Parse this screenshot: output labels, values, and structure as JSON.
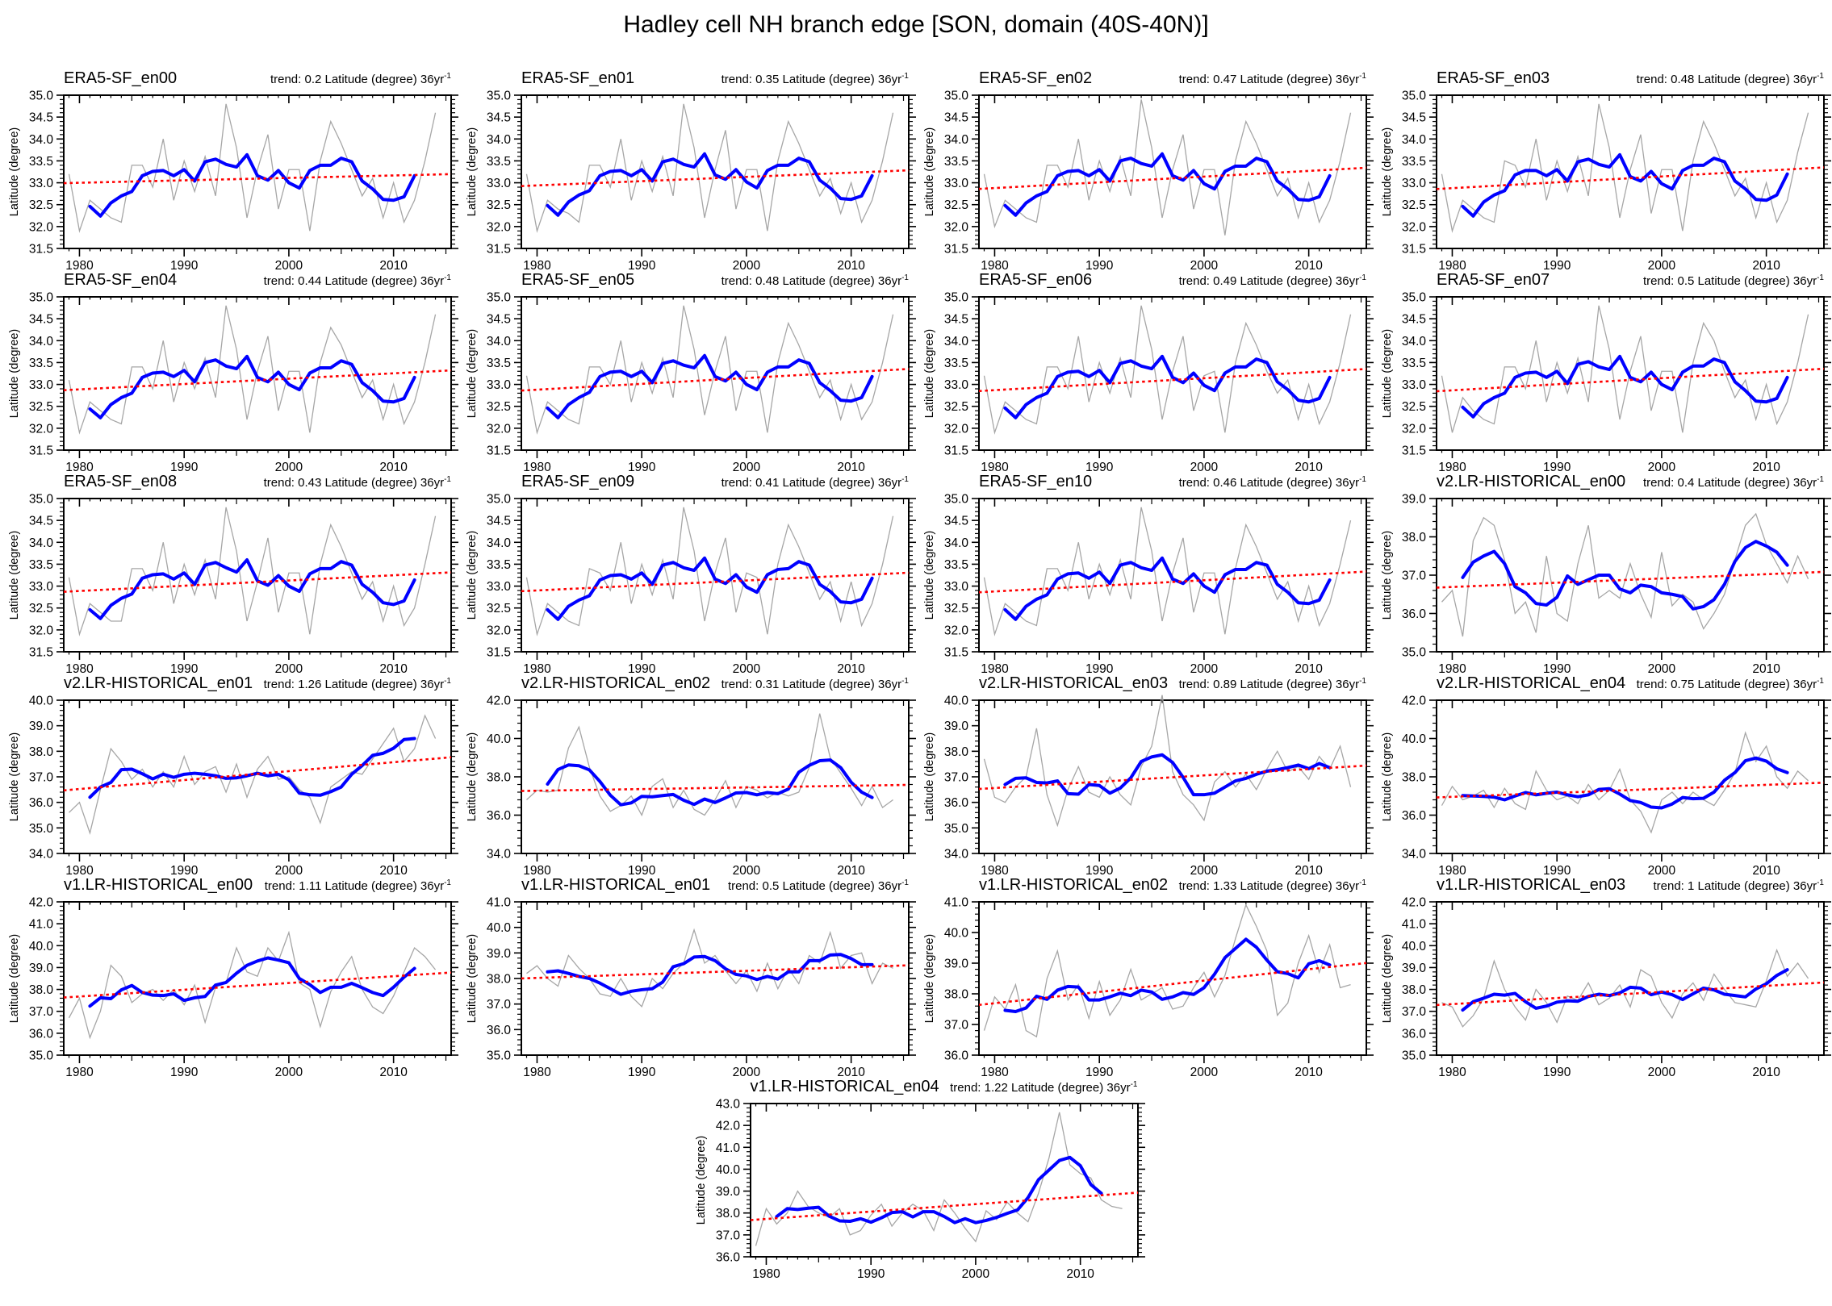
{
  "figure": {
    "title": "Hadley cell NH branch edge [SON, domain (40S-40N)]"
  },
  "chart_data": {
    "type": "line",
    "title": "Hadley cell NH branch edge [SON, domain (40S-40N)]",
    "xlabel": "",
    "ylabel": "Latitude (degree)",
    "x_start_year": 1979,
    "x_end_year": 2014,
    "xticks": [
      1980,
      1990,
      2000,
      2010
    ],
    "grid": false,
    "legend": "none",
    "smoothing_window": 5,
    "trend_sup": "-1",
    "colors": {
      "annual": "#a6a6a6",
      "smoothed": "#0000ff",
      "trend": "#ff0000",
      "axis": "#000000"
    },
    "series_roles": [
      {
        "name": "annual values",
        "style": "thin solid",
        "color": "#a6a6a6"
      },
      {
        "name": "5-yr running mean",
        "style": "thick solid",
        "color": "#0000ff"
      },
      {
        "name": "linear trend",
        "style": "dotted",
        "color": "#ff0000"
      }
    ],
    "panels": [
      {
        "title": "ERA5-SF_en00",
        "trend": 0.2,
        "trend_text": "trend: 0.2 Latitude (degree) 36yr",
        "ylim": [
          31.5,
          35.0
        ],
        "ystep": 0.5,
        "values": [
          33.2,
          31.9,
          32.6,
          32.4,
          32.2,
          32.1,
          33.4,
          33.4,
          32.9,
          34.0,
          32.6,
          33.5,
          32.8,
          33.6,
          32.7,
          34.8,
          33.8,
          32.2,
          33.3,
          34.1,
          32.4,
          33.3,
          33.3,
          31.9,
          33.5,
          34.4,
          33.9,
          33.3,
          32.7,
          33.1,
          32.2,
          33.0,
          32.1,
          32.6,
          33.5,
          34.6
        ]
      },
      {
        "title": "ERA5-SF_en01",
        "trend": 0.35,
        "trend_text": "trend: 0.35 Latitude (degree) 36yr",
        "ylim": [
          31.5,
          35.0
        ],
        "ystep": 0.5,
        "values": [
          33.2,
          31.9,
          32.6,
          32.4,
          32.3,
          32.1,
          33.4,
          33.4,
          32.9,
          34.0,
          32.6,
          33.5,
          32.8,
          33.6,
          32.7,
          34.8,
          33.8,
          32.2,
          33.3,
          34.2,
          32.4,
          33.3,
          33.3,
          31.9,
          33.5,
          34.4,
          33.9,
          33.3,
          32.7,
          33.1,
          32.3,
          33.0,
          32.1,
          32.6,
          33.5,
          34.6
        ]
      },
      {
        "title": "ERA5-SF_en02",
        "trend": 0.47,
        "trend_text": "trend: 0.47 Latitude (degree) 36yr",
        "ylim": [
          31.5,
          35.0
        ],
        "ystep": 0.5,
        "values": [
          33.2,
          32.0,
          32.6,
          32.4,
          32.2,
          32.1,
          33.4,
          33.4,
          32.9,
          34.0,
          32.6,
          33.5,
          32.8,
          33.6,
          32.7,
          34.9,
          33.8,
          32.2,
          33.3,
          34.1,
          32.4,
          33.3,
          33.3,
          31.8,
          33.5,
          34.4,
          33.9,
          33.3,
          32.7,
          33.1,
          32.2,
          33.0,
          32.1,
          32.6,
          33.5,
          34.6
        ]
      },
      {
        "title": "ERA5-SF_en03",
        "trend": 0.48,
        "trend_text": "trend: 0.48 Latitude (degree) 36yr",
        "ylim": [
          31.5,
          35.0
        ],
        "ystep": 0.5,
        "values": [
          33.2,
          31.9,
          32.6,
          32.4,
          32.2,
          32.1,
          33.5,
          33.4,
          32.9,
          34.0,
          32.6,
          33.5,
          32.8,
          33.6,
          32.7,
          34.8,
          33.8,
          32.2,
          33.3,
          34.1,
          32.3,
          33.3,
          33.3,
          31.9,
          33.5,
          34.4,
          33.9,
          33.3,
          32.7,
          33.1,
          32.2,
          33.0,
          32.1,
          32.6,
          33.7,
          34.6
        ]
      },
      {
        "title": "ERA5-SF_en04",
        "trend": 0.44,
        "trend_text": "trend: 0.44 Latitude (degree) 36yr",
        "ylim": [
          31.5,
          35.0
        ],
        "ystep": 0.5,
        "values": [
          33.1,
          31.9,
          32.6,
          32.4,
          32.2,
          32.1,
          33.4,
          33.4,
          32.9,
          34.0,
          32.6,
          33.5,
          32.9,
          33.6,
          32.7,
          34.8,
          33.8,
          32.2,
          33.3,
          34.1,
          32.4,
          33.3,
          33.3,
          31.9,
          33.5,
          34.3,
          33.9,
          33.3,
          32.7,
          33.1,
          32.2,
          33.0,
          32.1,
          32.6,
          33.5,
          34.6
        ]
      },
      {
        "title": "ERA5-SF_en05",
        "trend": 0.48,
        "trend_text": "trend: 0.48 Latitude (degree) 36yr",
        "ylim": [
          31.5,
          35.0
        ],
        "ystep": 0.5,
        "values": [
          33.2,
          31.9,
          32.6,
          32.4,
          32.2,
          32.1,
          33.4,
          33.4,
          33.0,
          34.0,
          32.6,
          33.5,
          32.8,
          33.6,
          32.7,
          34.8,
          33.8,
          32.3,
          33.3,
          34.1,
          32.4,
          33.3,
          33.3,
          31.9,
          33.5,
          34.4,
          33.9,
          33.3,
          32.7,
          33.1,
          32.2,
          33.0,
          32.2,
          32.6,
          33.5,
          34.6
        ]
      },
      {
        "title": "ERA5-SF_en06",
        "trend": 0.49,
        "trend_text": "trend: 0.49 Latitude (degree) 36yr",
        "ylim": [
          31.5,
          35.0
        ],
        "ystep": 0.5,
        "values": [
          33.2,
          31.9,
          32.6,
          32.4,
          32.2,
          32.1,
          33.4,
          33.4,
          32.9,
          34.1,
          32.6,
          33.5,
          32.8,
          33.6,
          32.7,
          34.8,
          33.8,
          32.2,
          33.3,
          34.1,
          32.4,
          33.2,
          33.3,
          31.9,
          33.5,
          34.4,
          33.9,
          33.3,
          32.8,
          33.1,
          32.2,
          33.0,
          32.1,
          32.6,
          33.5,
          34.6
        ]
      },
      {
        "title": "ERA5-SF_en07",
        "trend": 0.5,
        "trend_text": "trend: 0.5 Latitude (degree) 36yr",
        "ylim": [
          31.5,
          35.0
        ],
        "ystep": 0.5,
        "values": [
          33.2,
          31.9,
          32.7,
          32.4,
          32.2,
          32.1,
          33.4,
          33.4,
          32.9,
          34.0,
          32.6,
          33.5,
          32.8,
          33.6,
          32.6,
          34.8,
          33.8,
          32.2,
          33.3,
          34.1,
          32.4,
          33.3,
          33.3,
          31.9,
          33.5,
          34.4,
          34.0,
          33.3,
          32.7,
          33.1,
          32.2,
          33.0,
          32.1,
          32.6,
          33.5,
          34.6
        ]
      },
      {
        "title": "ERA5-SF_en08",
        "trend": 0.43,
        "trend_text": "trend: 0.43 Latitude (degree) 36yr",
        "ylim": [
          31.5,
          35.0
        ],
        "ystep": 0.5,
        "values": [
          33.2,
          31.9,
          32.6,
          32.4,
          32.2,
          32.2,
          33.4,
          33.4,
          32.9,
          34.0,
          32.6,
          33.5,
          32.8,
          33.6,
          32.7,
          34.8,
          33.8,
          32.2,
          33.1,
          34.1,
          32.4,
          33.3,
          33.3,
          31.9,
          33.5,
          34.4,
          33.9,
          33.3,
          32.7,
          33.1,
          32.2,
          33.0,
          32.1,
          32.5,
          33.5,
          34.6
        ]
      },
      {
        "title": "ERA5-SF_en09",
        "trend": 0.41,
        "trend_text": "trend: 0.41 Latitude (degree) 36yr",
        "ylim": [
          31.5,
          35.0
        ],
        "ystep": 0.5,
        "values": [
          33.2,
          31.9,
          32.6,
          32.4,
          32.2,
          32.1,
          33.4,
          33.3,
          32.9,
          34.0,
          32.6,
          33.5,
          32.8,
          33.6,
          32.7,
          34.8,
          33.8,
          32.2,
          33.3,
          34.1,
          32.4,
          33.3,
          33.2,
          31.9,
          33.5,
          34.4,
          33.9,
          33.3,
          32.7,
          33.1,
          32.2,
          33.1,
          32.1,
          32.6,
          33.5,
          34.6
        ]
      },
      {
        "title": "ERA5-SF_en10",
        "trend": 0.46,
        "trend_text": "trend: 0.46 Latitude (degree) 36yr",
        "ylim": [
          31.5,
          35.0
        ],
        "ystep": 0.5,
        "values": [
          33.2,
          31.9,
          32.6,
          32.4,
          32.2,
          32.1,
          33.4,
          33.4,
          32.9,
          34.0,
          32.7,
          33.5,
          32.8,
          33.6,
          32.7,
          34.8,
          33.8,
          32.2,
          33.3,
          34.1,
          32.4,
          33.3,
          33.3,
          31.9,
          33.4,
          34.4,
          33.9,
          33.3,
          32.7,
          33.1,
          32.2,
          33.0,
          32.1,
          32.6,
          33.5,
          34.5
        ]
      },
      {
        "title": "v2.LR-HISTORICAL_en00",
        "trend": 0.4,
        "trend_text": "trend: 0.4 Latitude (degree) 36yr",
        "ylim": [
          35.0,
          39.0
        ],
        "ystep": 1.0,
        "values": [
          36.3,
          36.6,
          35.4,
          37.9,
          38.5,
          38.3,
          37.4,
          36.0,
          36.3,
          35.5,
          37.5,
          36.0,
          35.8,
          37.3,
          38.3,
          36.4,
          36.6,
          36.4,
          37.3,
          36.5,
          35.9,
          37.6,
          36.2,
          36.5,
          36.3,
          35.6,
          36.0,
          36.5,
          37.4,
          38.3,
          38.6,
          37.8,
          37.3,
          36.8,
          37.5,
          36.9
        ]
      },
      {
        "title": "v2.LR-HISTORICAL_en01",
        "trend": 1.26,
        "trend_text": "trend: 1.26 Latitude (degree) 36yr",
        "ylim": [
          34.0,
          40.0
        ],
        "ystep": 1.0,
        "values": [
          35.6,
          36.0,
          34.8,
          36.5,
          38.1,
          37.6,
          36.9,
          37.3,
          36.6,
          37.2,
          36.6,
          37.8,
          36.7,
          37.2,
          37.4,
          36.4,
          37.5,
          36.2,
          37.3,
          37.8,
          36.9,
          37.0,
          36.5,
          36.2,
          35.2,
          36.6,
          36.9,
          37.2,
          37.1,
          37.7,
          38.3,
          38.9,
          37.6,
          38.1,
          39.4,
          38.5
        ]
      },
      {
        "title": "v2.LR-HISTORICAL_en02",
        "trend": 0.31,
        "trend_text": "trend: 0.31 Latitude (degree) 36yr",
        "ylim": [
          34.0,
          42.0
        ],
        "ystep": 2.0,
        "values": [
          36.8,
          37.3,
          37.2,
          37.3,
          39.5,
          40.6,
          38.5,
          37.0,
          36.2,
          36.5,
          37.0,
          36.0,
          37.5,
          37.9,
          36.4,
          37.3,
          36.3,
          36.0,
          36.8,
          37.8,
          36.4,
          37.5,
          37.3,
          36.9,
          37.2,
          37.0,
          37.2,
          38.5,
          41.3,
          39.0,
          38.2,
          37.4,
          36.5,
          37.5,
          36.4,
          36.8
        ]
      },
      {
        "title": "v2.LR-HISTORICAL_en03",
        "trend": 0.89,
        "trend_text": "trend: 0.89 Latitude (degree) 36yr",
        "ylim": [
          34.0,
          40.0
        ],
        "ystep": 1.0,
        "values": [
          37.7,
          36.2,
          36.0,
          36.6,
          37.0,
          38.9,
          36.3,
          35.1,
          36.5,
          37.4,
          36.4,
          36.2,
          37.0,
          36.3,
          35.9,
          37.4,
          38.2,
          40.2,
          37.2,
          36.3,
          35.9,
          35.3,
          36.8,
          37.2,
          36.6,
          37.1,
          36.5,
          37.3,
          38.0,
          37.2,
          37.4,
          36.9,
          37.8,
          37.3,
          38.2,
          36.6
        ]
      },
      {
        "title": "v2.LR-HISTORICAL_en04",
        "trend": 0.75,
        "trend_text": "trend: 0.75 Latitude (degree) 36yr",
        "ylim": [
          34.0,
          42.0
        ],
        "ystep": 2.0,
        "values": [
          36.5,
          37.5,
          36.8,
          37.0,
          37.3,
          36.4,
          37.4,
          36.6,
          36.3,
          38.3,
          37.3,
          36.8,
          37.0,
          36.6,
          37.6,
          36.8,
          37.3,
          38.4,
          36.8,
          36.2,
          35.1,
          36.8,
          37.2,
          36.6,
          37.2,
          36.8,
          36.5,
          37.3,
          38.2,
          40.3,
          38.8,
          39.6,
          38.0,
          37.4,
          38.3,
          37.8
        ]
      },
      {
        "title": "v1.LR-HISTORICAL_en00",
        "trend": 1.11,
        "trend_text": "trend: 1.11 Latitude (degree) 36yr",
        "ylim": [
          35.0,
          42.0
        ],
        "ystep": 1.0,
        "values": [
          36.7,
          37.6,
          35.8,
          37.0,
          39.1,
          38.6,
          37.4,
          37.8,
          38.0,
          37.5,
          38.0,
          37.3,
          38.2,
          36.5,
          38.1,
          38.3,
          39.9,
          38.8,
          38.6,
          39.9,
          39.3,
          40.6,
          38.3,
          38.0,
          36.3,
          37.9,
          38.8,
          39.5,
          38.0,
          37.2,
          36.9,
          37.7,
          38.8,
          39.9,
          39.5,
          38.9
        ]
      },
      {
        "title": "v1.LR-HISTORICAL_en01",
        "trend": 0.5,
        "trend_text": "trend: 0.5 Latitude (degree) 36yr",
        "ylim": [
          35.0,
          41.0
        ],
        "ystep": 1.0,
        "values": [
          38.2,
          38.5,
          38.0,
          37.7,
          38.9,
          38.4,
          38.0,
          37.4,
          37.3,
          38.0,
          37.3,
          36.9,
          38.0,
          37.6,
          38.2,
          38.6,
          39.9,
          38.6,
          38.9,
          38.3,
          37.8,
          38.3,
          37.5,
          38.6,
          37.6,
          38.4,
          37.8,
          38.9,
          38.6,
          39.8,
          38.4,
          38.9,
          39.0,
          37.8,
          38.6,
          38.4
        ]
      },
      {
        "title": "v1.LR-HISTORICAL_en02",
        "trend": 1.33,
        "trend_text": "trend: 1.33 Latitude (degree) 36yr",
        "ylim": [
          36.0,
          41.0
        ],
        "ystep": 1.0,
        "values": [
          36.8,
          37.9,
          37.5,
          38.3,
          36.8,
          36.6,
          38.5,
          39.4,
          37.8,
          38.3,
          37.2,
          38.4,
          37.3,
          37.8,
          38.8,
          37.8,
          38.0,
          38.2,
          37.5,
          37.6,
          38.2,
          38.7,
          37.9,
          38.6,
          39.8,
          40.9,
          40.2,
          39.4,
          37.3,
          37.7,
          39.0,
          39.9,
          38.7,
          39.6,
          38.2,
          38.3
        ]
      },
      {
        "title": "v1.LR-HISTORICAL_en03",
        "trend": 1,
        "trend_text": "trend: 1 Latitude (degree) 36yr",
        "ylim": [
          35.0,
          42.0
        ],
        "ystep": 1.0,
        "values": [
          37.4,
          37.2,
          36.3,
          36.8,
          37.6,
          39.3,
          38.0,
          37.2,
          36.6,
          38.0,
          37.4,
          36.5,
          37.7,
          37.5,
          38.3,
          37.3,
          37.6,
          38.2,
          37.2,
          38.9,
          38.6,
          37.4,
          36.7,
          37.8,
          38.3,
          37.5,
          38.7,
          38.0,
          37.4,
          37.3,
          37.2,
          38.4,
          39.8,
          38.6,
          39.2,
          38.5
        ]
      },
      {
        "title": "v1.LR-HISTORICAL_en04",
        "trend": 1.22,
        "trend_text": "trend: 1.22 Latitude (degree) 36yr",
        "ylim": [
          36.0,
          43.0
        ],
        "ystep": 1.0,
        "values": [
          36.5,
          38.2,
          37.5,
          38.0,
          39.0,
          38.3,
          38.0,
          37.8,
          38.2,
          37.0,
          37.2,
          37.9,
          38.4,
          37.4,
          38.0,
          38.4,
          38.1,
          37.2,
          38.6,
          38.0,
          37.3,
          36.7,
          38.1,
          37.7,
          38.5,
          38.0,
          37.6,
          38.9,
          40.5,
          42.6,
          40.2,
          39.8,
          39.6,
          38.6,
          38.3,
          38.2
        ]
      }
    ]
  }
}
